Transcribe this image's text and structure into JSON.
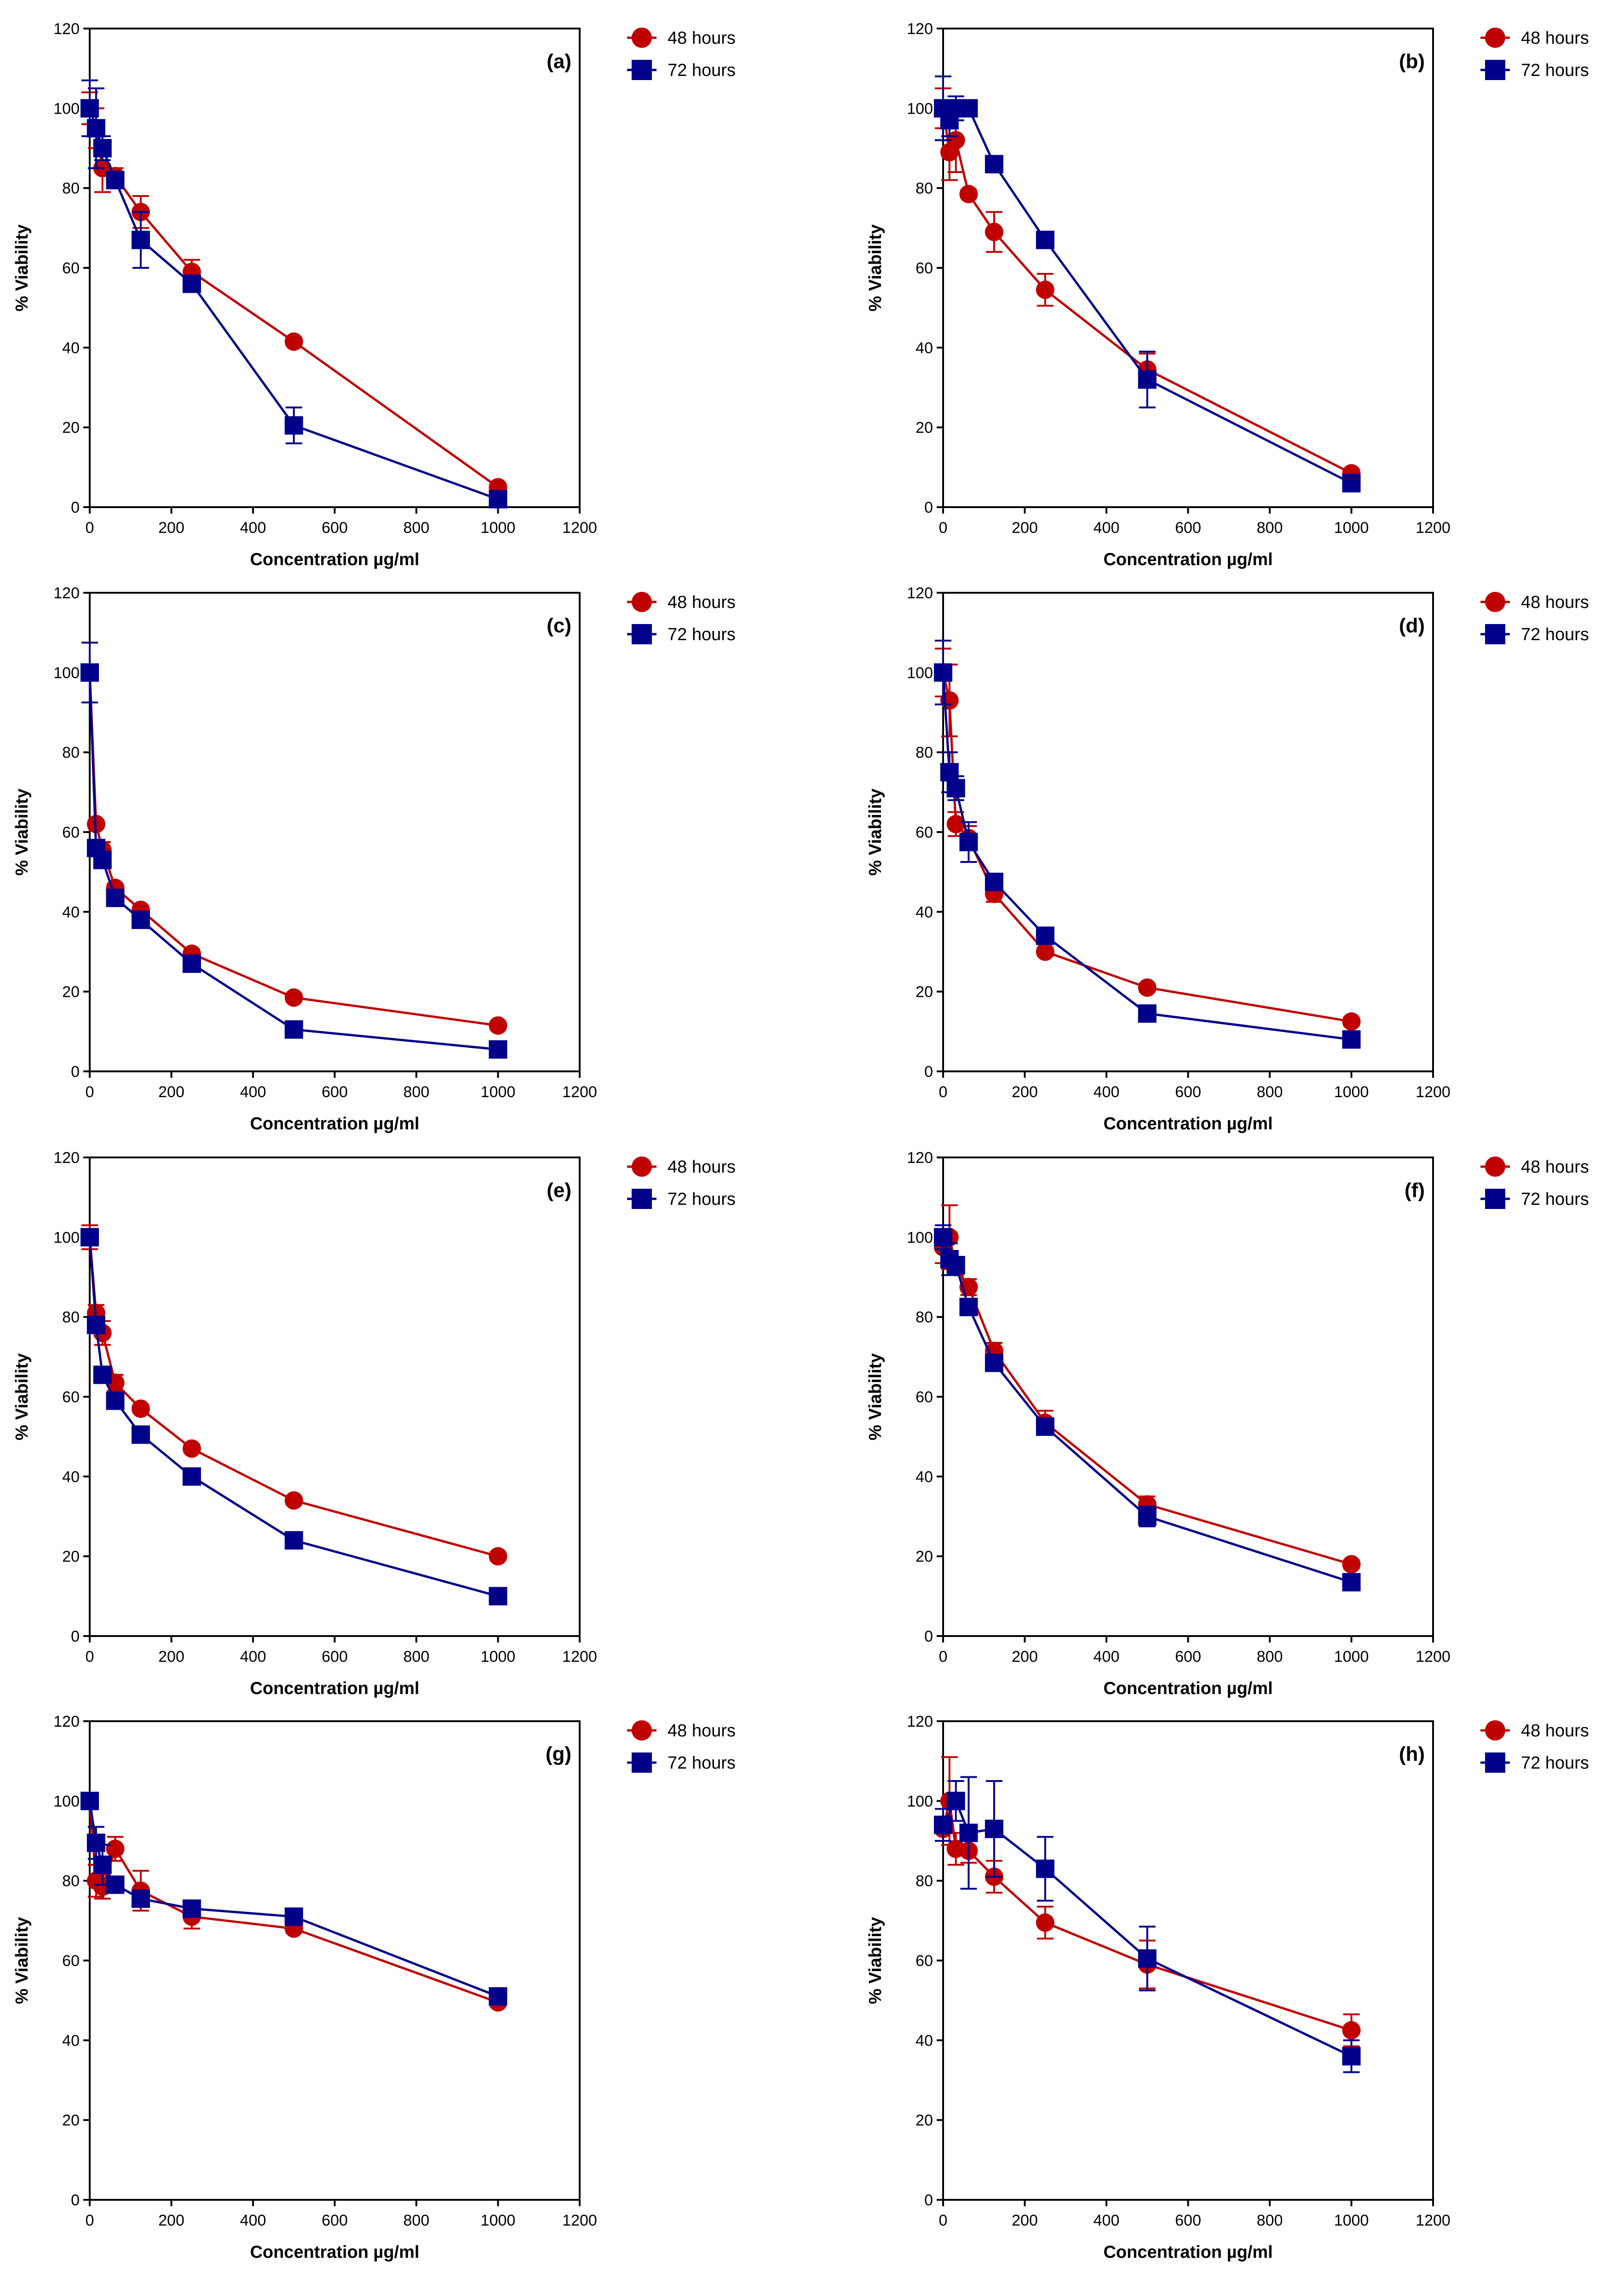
{
  "colors": {
    "s48": "#c00000",
    "s72": "#00008b",
    "axis": "#000000"
  },
  "chart_data": [
    {
      "type": "line",
      "panel": "(a)",
      "xlabel": "Concentration µg/ml",
      "ylabel": "% Viability",
      "xlim": [
        0,
        1200
      ],
      "ylim": [
        0,
        120
      ],
      "xticks": [
        "0",
        "200",
        "400",
        "600",
        "800",
        "1000",
        "1200"
      ],
      "yticks": [
        "0",
        "20",
        "40",
        "60",
        "80",
        "100",
        "120"
      ],
      "legend": "top-right",
      "series": [
        {
          "name": "48 hours",
          "marker": "circle",
          "points": [
            {
              "x": 0,
              "y": 100,
              "err": 4
            },
            {
              "x": 15.6,
              "y": 95,
              "err": 5
            },
            {
              "x": 31.25,
              "y": 85,
              "err": 6
            },
            {
              "x": 62.5,
              "y": 83,
              "err": 2
            },
            {
              "x": 125,
              "y": 74,
              "err": 4
            },
            {
              "x": 250,
              "y": 59,
              "err": 3
            },
            {
              "x": 500,
              "y": 41.5,
              "err": 1
            },
            {
              "x": 1000,
              "y": 5,
              "err": 1
            }
          ]
        },
        {
          "name": "72 hours",
          "marker": "square",
          "points": [
            {
              "x": 0,
              "y": 100,
              "err": 7
            },
            {
              "x": 15.6,
              "y": 95,
              "err": 10
            },
            {
              "x": 31.25,
              "y": 90,
              "err": 3
            },
            {
              "x": 62.5,
              "y": 82,
              "err": 2
            },
            {
              "x": 125,
              "y": 67,
              "err": 7
            },
            {
              "x": 250,
              "y": 56,
              "err": 2
            },
            {
              "x": 500,
              "y": 20.5,
              "err": 4.5
            },
            {
              "x": 1000,
              "y": 2,
              "err": 1
            }
          ]
        }
      ]
    },
    {
      "type": "line",
      "panel": "(b)",
      "xlabel": "Concentration µg/ml",
      "ylabel": "% Viability",
      "xlim": [
        0,
        1200
      ],
      "ylim": [
        0,
        120
      ],
      "xticks": [
        "0",
        "200",
        "400",
        "600",
        "800",
        "1000",
        "1200"
      ],
      "yticks": [
        "0",
        "20",
        "40",
        "60",
        "80",
        "100",
        "120"
      ],
      "legend": "top-right",
      "series": [
        {
          "name": "48 hours",
          "marker": "circle",
          "points": [
            {
              "x": 0,
              "y": 100,
              "err": 5
            },
            {
              "x": 15.6,
              "y": 89,
              "err": 7
            },
            {
              "x": 31.25,
              "y": 92,
              "err": 8
            },
            {
              "x": 62.5,
              "y": 78.5,
              "err": 1
            },
            {
              "x": 125,
              "y": 69,
              "err": 5
            },
            {
              "x": 250,
              "y": 54.5,
              "err": 4
            },
            {
              "x": 500,
              "y": 34.5,
              "err": 4
            },
            {
              "x": 1000,
              "y": 8.5,
              "err": 1
            }
          ]
        },
        {
          "name": "72 hours",
          "marker": "square",
          "points": [
            {
              "x": 0,
              "y": 100,
              "err": 8
            },
            {
              "x": 15.6,
              "y": 97,
              "err": 4
            },
            {
              "x": 31.25,
              "y": 100,
              "err": 3
            },
            {
              "x": 62.5,
              "y": 100,
              "err": 2
            },
            {
              "x": 125,
              "y": 86,
              "err": 2
            },
            {
              "x": 250,
              "y": 67,
              "err": 1
            },
            {
              "x": 500,
              "y": 32,
              "err": 7
            },
            {
              "x": 1000,
              "y": 6,
              "err": 1
            }
          ]
        }
      ]
    },
    {
      "type": "line",
      "panel": "(c)",
      "xlabel": "Concentration µg/ml",
      "ylabel": "% Viability",
      "xlim": [
        0,
        1200
      ],
      "ylim": [
        0,
        120
      ],
      "xticks": [
        "0",
        "200",
        "400",
        "600",
        "800",
        "1000",
        "1200"
      ],
      "yticks": [
        "0",
        "20",
        "40",
        "60",
        "80",
        "100",
        "120"
      ],
      "legend": "top-right",
      "series": [
        {
          "name": "48 hours",
          "marker": "circle",
          "points": [
            {
              "x": 0,
              "y": 100,
              "err": 2
            },
            {
              "x": 15.6,
              "y": 62,
              "err": 1
            },
            {
              "x": 31.25,
              "y": 55.5,
              "err": 2
            },
            {
              "x": 62.5,
              "y": 46,
              "err": 1
            },
            {
              "x": 125,
              "y": 40.5,
              "err": 1
            },
            {
              "x": 250,
              "y": 29.5,
              "err": 1
            },
            {
              "x": 500,
              "y": 18.5,
              "err": 1
            },
            {
              "x": 1000,
              "y": 11.5,
              "err": 1
            }
          ]
        },
        {
          "name": "72 hours",
          "marker": "square",
          "points": [
            {
              "x": 0,
              "y": 100,
              "err": 7.5
            },
            {
              "x": 15.6,
              "y": 56,
              "err": 2
            },
            {
              "x": 31.25,
              "y": 53,
              "err": 2
            },
            {
              "x": 62.5,
              "y": 43.5,
              "err": 1
            },
            {
              "x": 125,
              "y": 38,
              "err": 1
            },
            {
              "x": 250,
              "y": 27,
              "err": 1
            },
            {
              "x": 500,
              "y": 10.5,
              "err": 1
            },
            {
              "x": 1000,
              "y": 5.5,
              "err": 1
            }
          ]
        }
      ]
    },
    {
      "type": "line",
      "panel": "(d)",
      "xlabel": "Concentration µg/ml",
      "ylabel": "% Viability",
      "xlim": [
        0,
        1200
      ],
      "ylim": [
        0,
        120
      ],
      "xticks": [
        "0",
        "200",
        "400",
        "600",
        "800",
        "1000",
        "1200"
      ],
      "yticks": [
        "0",
        "20",
        "40",
        "60",
        "80",
        "100",
        "120"
      ],
      "legend": "top-right",
      "series": [
        {
          "name": "48 hours",
          "marker": "circle",
          "points": [
            {
              "x": 0,
              "y": 100,
              "err": 6
            },
            {
              "x": 15.6,
              "y": 93,
              "err": 9
            },
            {
              "x": 31.25,
              "y": 62,
              "err": 3
            },
            {
              "x": 62.5,
              "y": 58.5,
              "err": 3
            },
            {
              "x": 125,
              "y": 44.5,
              "err": 2
            },
            {
              "x": 250,
              "y": 30,
              "err": 1
            },
            {
              "x": 500,
              "y": 21,
              "err": 1
            },
            {
              "x": 1000,
              "y": 12.5,
              "err": 1
            }
          ]
        },
        {
          "name": "72 hours",
          "marker": "square",
          "points": [
            {
              "x": 0,
              "y": 100,
              "err": 8
            },
            {
              "x": 15.6,
              "y": 75,
              "err": 5
            },
            {
              "x": 31.25,
              "y": 71,
              "err": 3
            },
            {
              "x": 62.5,
              "y": 57.5,
              "err": 5
            },
            {
              "x": 125,
              "y": 47.5,
              "err": 2
            },
            {
              "x": 250,
              "y": 34,
              "err": 1
            },
            {
              "x": 500,
              "y": 14.5,
              "err": 1
            },
            {
              "x": 1000,
              "y": 8,
              "err": 1
            }
          ]
        }
      ]
    },
    {
      "type": "line",
      "panel": "(e)",
      "xlabel": "Concentration µg/ml",
      "ylabel": "% Viability",
      "xlim": [
        0,
        1200
      ],
      "ylim": [
        0,
        120
      ],
      "xticks": [
        "0",
        "200",
        "400",
        "600",
        "800",
        "1000",
        "1200"
      ],
      "yticks": [
        "0",
        "20",
        "40",
        "60",
        "80",
        "100",
        "120"
      ],
      "legend": "top-right",
      "series": [
        {
          "name": "48 hours",
          "marker": "circle",
          "points": [
            {
              "x": 0,
              "y": 100,
              "err": 3
            },
            {
              "x": 15.6,
              "y": 81,
              "err": 2
            },
            {
              "x": 31.25,
              "y": 76,
              "err": 3
            },
            {
              "x": 62.5,
              "y": 63.5,
              "err": 2
            },
            {
              "x": 125,
              "y": 57,
              "err": 1
            },
            {
              "x": 250,
              "y": 47,
              "err": 1
            },
            {
              "x": 500,
              "y": 34,
              "err": 1
            },
            {
              "x": 1000,
              "y": 20,
              "err": 1
            }
          ]
        },
        {
          "name": "72 hours",
          "marker": "square",
          "points": [
            {
              "x": 0,
              "y": 100,
              "err": 2
            },
            {
              "x": 15.6,
              "y": 78,
              "err": 2
            },
            {
              "x": 31.25,
              "y": 65.5,
              "err": 2
            },
            {
              "x": 62.5,
              "y": 59,
              "err": 2
            },
            {
              "x": 125,
              "y": 50.5,
              "err": 1
            },
            {
              "x": 250,
              "y": 40,
              "err": 1
            },
            {
              "x": 500,
              "y": 24,
              "err": 1
            },
            {
              "x": 1000,
              "y": 10,
              "err": 1
            }
          ]
        }
      ]
    },
    {
      "type": "line",
      "panel": "(f)",
      "xlabel": "Concentration µg/ml",
      "ylabel": "% Viability",
      "xlim": [
        0,
        1200
      ],
      "ylim": [
        0,
        120
      ],
      "xticks": [
        "0",
        "200",
        "400",
        "600",
        "800",
        "1000",
        "1200"
      ],
      "yticks": [
        "0",
        "20",
        "40",
        "60",
        "80",
        "100",
        "120"
      ],
      "legend": "top-right",
      "series": [
        {
          "name": "48 hours",
          "marker": "circle",
          "points": [
            {
              "x": 0,
              "y": 97.5,
              "err": 4
            },
            {
              "x": 15.6,
              "y": 100,
              "err": 8
            },
            {
              "x": 31.25,
              "y": 92.5,
              "err": 2
            },
            {
              "x": 62.5,
              "y": 87.5,
              "err": 2
            },
            {
              "x": 125,
              "y": 71.5,
              "err": 2
            },
            {
              "x": 250,
              "y": 53.5,
              "err": 3
            },
            {
              "x": 500,
              "y": 33,
              "err": 2
            },
            {
              "x": 1000,
              "y": 18,
              "err": 1
            }
          ]
        },
        {
          "name": "72 hours",
          "marker": "square",
          "points": [
            {
              "x": 0,
              "y": 100,
              "err": 3
            },
            {
              "x": 15.6,
              "y": 94.5,
              "err": 4
            },
            {
              "x": 31.25,
              "y": 93,
              "err": 2
            },
            {
              "x": 62.5,
              "y": 82.5,
              "err": 2
            },
            {
              "x": 125,
              "y": 68.5,
              "err": 1
            },
            {
              "x": 250,
              "y": 52.5,
              "err": 2
            },
            {
              "x": 500,
              "y": 30,
              "err": 2.5
            },
            {
              "x": 1000,
              "y": 13.5,
              "err": 1
            }
          ]
        }
      ]
    },
    {
      "type": "line",
      "panel": "(g)",
      "xlabel": "Concentration µg/ml",
      "ylabel": "% Viability",
      "xlim": [
        0,
        1200
      ],
      "ylim": [
        0,
        120
      ],
      "xticks": [
        "0",
        "200",
        "400",
        "600",
        "800",
        "1000",
        "1200"
      ],
      "yticks": [
        "0",
        "20",
        "40",
        "60",
        "80",
        "100",
        "120"
      ],
      "legend": "top-right",
      "series": [
        {
          "name": "48 hours",
          "marker": "circle",
          "points": [
            {
              "x": 0,
              "y": 100,
              "err": 2
            },
            {
              "x": 15.6,
              "y": 80,
              "err": 4
            },
            {
              "x": 31.25,
              "y": 78.5,
              "err": 3
            },
            {
              "x": 62.5,
              "y": 88,
              "err": 3
            },
            {
              "x": 125,
              "y": 77.5,
              "err": 5
            },
            {
              "x": 250,
              "y": 71,
              "err": 3
            },
            {
              "x": 500,
              "y": 68,
              "err": 1
            },
            {
              "x": 1000,
              "y": 49.5,
              "err": 1
            }
          ]
        },
        {
          "name": "72 hours",
          "marker": "square",
          "points": [
            {
              "x": 0,
              "y": 100,
              "err": 2
            },
            {
              "x": 15.6,
              "y": 89.5,
              "err": 4
            },
            {
              "x": 31.25,
              "y": 84,
              "err": 5
            },
            {
              "x": 62.5,
              "y": 79,
              "err": 2
            },
            {
              "x": 125,
              "y": 75.5,
              "err": 2
            },
            {
              "x": 250,
              "y": 73,
              "err": 2
            },
            {
              "x": 500,
              "y": 71,
              "err": 1
            },
            {
              "x": 1000,
              "y": 51,
              "err": 1
            }
          ]
        }
      ]
    },
    {
      "type": "line",
      "panel": "(h)",
      "xlabel": "Concentration µg/ml",
      "ylabel": "% Viability",
      "xlim": [
        0,
        1200
      ],
      "ylim": [
        0,
        120
      ],
      "xticks": [
        "0",
        "200",
        "400",
        "600",
        "800",
        "1000",
        "1200"
      ],
      "yticks": [
        "0",
        "20",
        "40",
        "60",
        "80",
        "100",
        "120"
      ],
      "legend": "top-right",
      "series": [
        {
          "name": "48 hours",
          "marker": "circle",
          "points": [
            {
              "x": 0,
              "y": 93,
              "err": 3
            },
            {
              "x": 15.6,
              "y": 100,
              "err": 11
            },
            {
              "x": 31.25,
              "y": 88,
              "err": 4
            },
            {
              "x": 62.5,
              "y": 87.5,
              "err": 3
            },
            {
              "x": 125,
              "y": 81,
              "err": 4
            },
            {
              "x": 250,
              "y": 69.5,
              "err": 4
            },
            {
              "x": 500,
              "y": 59,
              "err": 6
            },
            {
              "x": 1000,
              "y": 42.5,
              "err": 4
            }
          ]
        },
        {
          "name": "72 hours",
          "marker": "square",
          "points": [
            {
              "x": 0,
              "y": 94,
              "err": 4
            },
            {
              "x": 31.25,
              "y": 100,
              "err": 5
            },
            {
              "x": 62.5,
              "y": 92,
              "err": 14
            },
            {
              "x": 125,
              "y": 93,
              "err": 12
            },
            {
              "x": 250,
              "y": 83,
              "err": 8
            },
            {
              "x": 500,
              "y": 60.5,
              "err": 8
            },
            {
              "x": 1000,
              "y": 36,
              "err": 4
            }
          ]
        }
      ]
    }
  ]
}
